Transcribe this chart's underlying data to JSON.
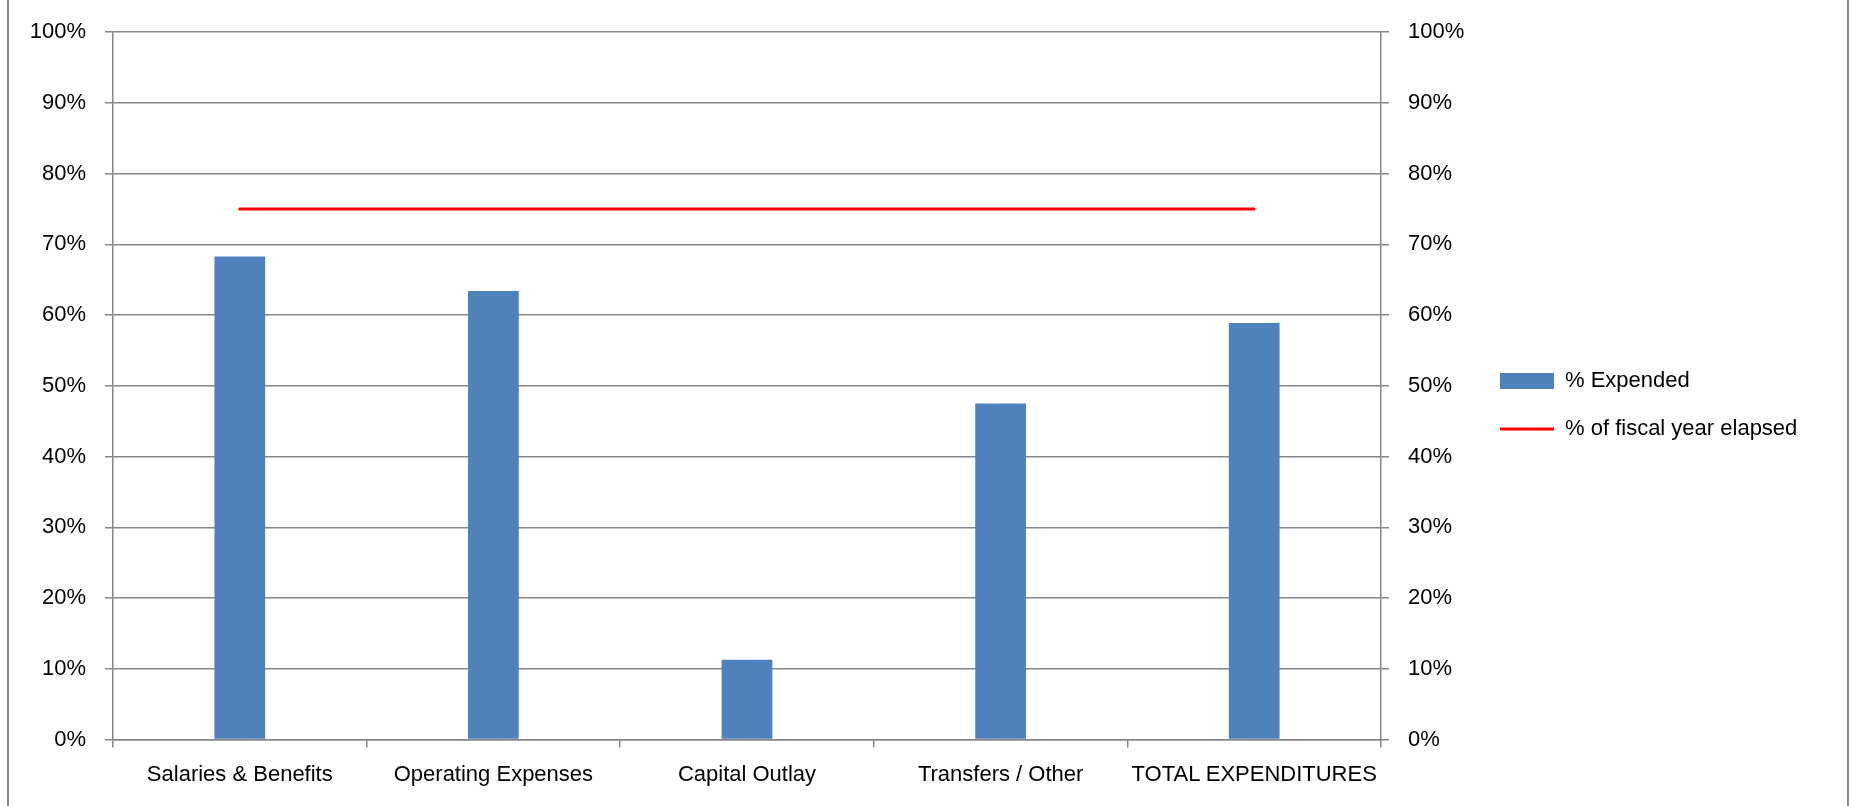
{
  "chart_data": {
    "type": "bar",
    "categories": [
      "Salaries & Benefits",
      "Operating Expenses",
      "Capital Outlay",
      "Transfers / Other",
      "TOTAL EXPENDITURES"
    ],
    "series": [
      {
        "name": "% Expended",
        "color": "#4f81bd",
        "values": [
          68.3,
          63.4,
          11.3,
          47.5,
          58.9
        ]
      },
      {
        "name": "% of fiscal year elapsed",
        "type": "line",
        "axis": "y2",
        "color": "#ff0000",
        "marker": "none",
        "values": [
          75,
          75,
          75,
          75,
          75
        ]
      }
    ],
    "ylim": [
      0,
      100
    ],
    "yticks": [
      {
        "value": 0,
        "label": "0%"
      },
      {
        "value": 10,
        "label": "10%"
      },
      {
        "value": 20,
        "label": "20%"
      },
      {
        "value": 30,
        "label": "30%"
      },
      {
        "value": 40,
        "label": "40%"
      },
      {
        "value": 50,
        "label": "50%"
      },
      {
        "value": 60,
        "label": "60%"
      },
      {
        "value": 70,
        "label": "70%"
      },
      {
        "value": 80,
        "label": "80%"
      },
      {
        "value": 90,
        "label": "90%"
      },
      {
        "value": 100,
        "label": "100%"
      }
    ],
    "y2lim": [
      0,
      100
    ],
    "y2ticks": [
      {
        "value": 0,
        "label": "0%"
      },
      {
        "value": 10,
        "label": "10%"
      },
      {
        "value": 20,
        "label": "20%"
      },
      {
        "value": 30,
        "label": "30%"
      },
      {
        "value": 40,
        "label": "40%"
      },
      {
        "value": 50,
        "label": "50%"
      },
      {
        "value": 60,
        "label": "60%"
      },
      {
        "value": 70,
        "label": "70%"
      },
      {
        "value": 80,
        "label": "80%"
      },
      {
        "value": 90,
        "label": "90%"
      },
      {
        "value": 100,
        "label": "100%"
      }
    ],
    "grid": "y",
    "legend": "right"
  }
}
